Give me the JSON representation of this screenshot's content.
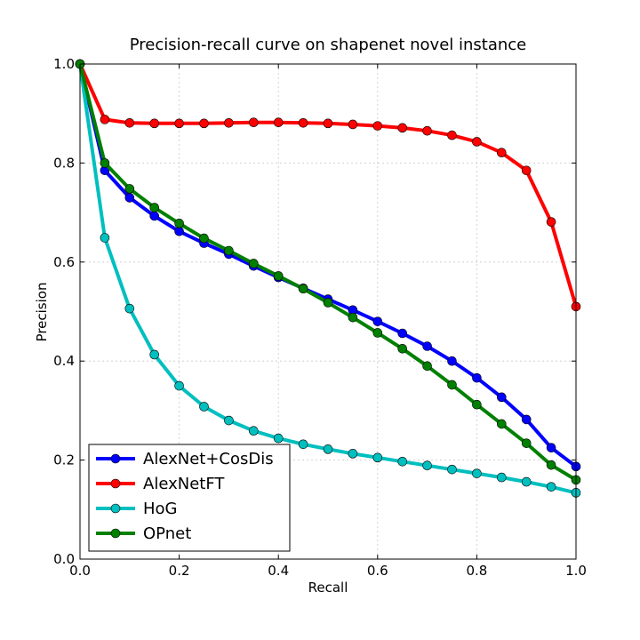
{
  "chart_data": {
    "type": "line",
    "title": "Precision-recall curve on shapenet novel instance",
    "xlabel": "Recall",
    "ylabel": "Precision",
    "xlim": [
      0.0,
      1.0
    ],
    "ylim": [
      0.0,
      1.0
    ],
    "xticks": [
      "0.0",
      "0.2",
      "0.4",
      "0.6",
      "0.8",
      "1.0"
    ],
    "yticks": [
      "0.0",
      "0.2",
      "0.4",
      "0.6",
      "0.8",
      "1.0"
    ],
    "grid": true,
    "legend_position": "lower-left",
    "x": [
      0.0,
      0.05,
      0.1,
      0.15,
      0.2,
      0.25,
      0.3,
      0.35,
      0.4,
      0.45,
      0.5,
      0.55,
      0.6,
      0.65,
      0.7,
      0.75,
      0.8,
      0.85,
      0.9,
      0.95,
      1.0
    ],
    "series": [
      {
        "name": "AlexNet+CosDis",
        "color": "#0000ff",
        "values": [
          1.0,
          0.785,
          0.73,
          0.693,
          0.662,
          0.638,
          0.616,
          0.592,
          0.569,
          0.547,
          0.525,
          0.503,
          0.48,
          0.456,
          0.43,
          0.4,
          0.366,
          0.327,
          0.282,
          0.225,
          0.187
        ]
      },
      {
        "name": "AlexNetFT",
        "color": "#ff0000",
        "values": [
          1.0,
          0.888,
          0.881,
          0.88,
          0.88,
          0.88,
          0.881,
          0.882,
          0.882,
          0.881,
          0.88,
          0.878,
          0.875,
          0.871,
          0.865,
          0.856,
          0.843,
          0.821,
          0.785,
          0.681,
          0.51
        ]
      },
      {
        "name": "HoG",
        "color": "#00bfbf",
        "values": [
          1.0,
          0.649,
          0.506,
          0.413,
          0.35,
          0.308,
          0.28,
          0.259,
          0.244,
          0.232,
          0.222,
          0.213,
          0.205,
          0.197,
          0.189,
          0.181,
          0.173,
          0.165,
          0.156,
          0.146,
          0.134
        ]
      },
      {
        "name": "OPnet",
        "color": "#008000",
        "values": [
          1.0,
          0.8,
          0.748,
          0.71,
          0.678,
          0.648,
          0.623,
          0.597,
          0.572,
          0.546,
          0.518,
          0.488,
          0.457,
          0.425,
          0.39,
          0.352,
          0.312,
          0.273,
          0.234,
          0.19,
          0.16
        ]
      }
    ]
  }
}
